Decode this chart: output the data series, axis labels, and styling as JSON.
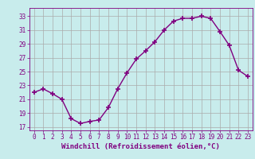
{
  "x": [
    0,
    1,
    2,
    3,
    4,
    5,
    6,
    7,
    8,
    9,
    10,
    11,
    12,
    13,
    14,
    15,
    16,
    17,
    18,
    19,
    20,
    21,
    22,
    23
  ],
  "y": [
    22.0,
    22.5,
    21.8,
    21.0,
    18.2,
    17.5,
    17.8,
    18.0,
    19.8,
    22.5,
    24.8,
    26.8,
    28.0,
    29.3,
    31.0,
    32.3,
    32.7,
    32.7,
    33.0,
    32.7,
    30.8,
    28.8,
    25.2,
    24.3
  ],
  "line_color": "#800080",
  "marker": "+",
  "markersize": 4,
  "linewidth": 1.0,
  "xlabel": "Windchill (Refroidissement éolien,°C)",
  "xlabel_fontsize": 6.5,
  "ylabel_ticks": [
    17,
    19,
    21,
    23,
    25,
    27,
    29,
    31,
    33
  ],
  "xlim": [
    -0.5,
    23.5
  ],
  "ylim": [
    16.5,
    34.2
  ],
  "bg_color": "#c8ecec",
  "grid_color": "#aaaaaa",
  "tick_color": "#800080",
  "tick_fontsize": 5.5,
  "xlabel_color": "#800080"
}
